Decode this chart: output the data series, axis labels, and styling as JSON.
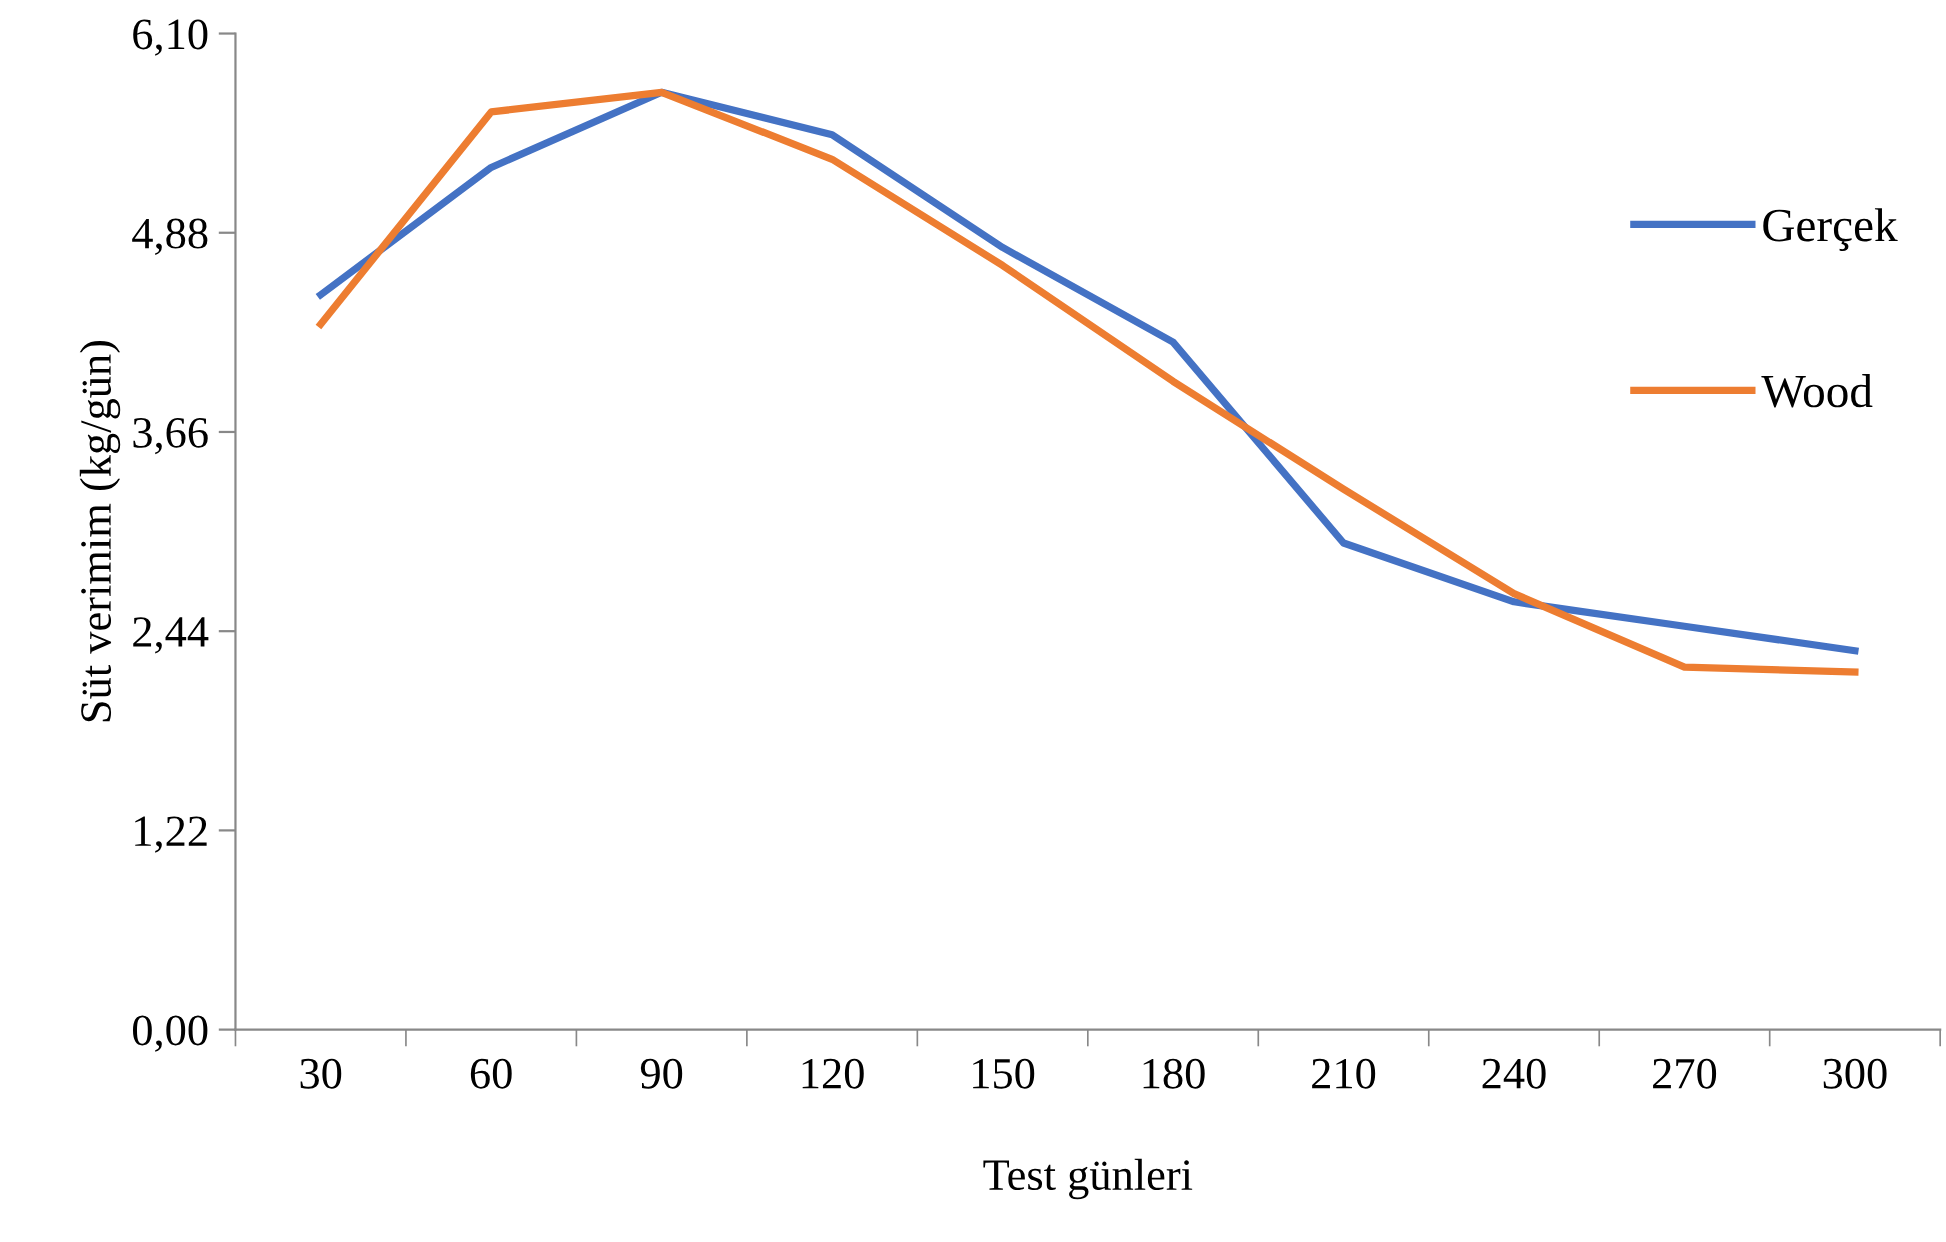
{
  "chart_data": {
    "type": "line",
    "xlabel": "Test günleri",
    "ylabel": "Süt verimim (kg/gün)",
    "categories": [
      "30",
      "60",
      "90",
      "120",
      "150",
      "180",
      "210",
      "240",
      "270",
      "300"
    ],
    "series": [
      {
        "name": "Gerçek",
        "color": "#4472c4",
        "values": [
          4.5,
          5.28,
          5.74,
          5.48,
          4.79,
          4.21,
          2.98,
          2.62,
          2.47,
          2.32
        ]
      },
      {
        "name": "Wood",
        "color": "#ed7d31",
        "values": [
          4.32,
          5.62,
          5.74,
          5.33,
          4.68,
          3.97,
          3.31,
          2.67,
          2.22,
          2.19
        ]
      }
    ],
    "ylim": [
      0,
      6.1
    ],
    "yticks": [
      {
        "value": 0,
        "label": "0,00"
      },
      {
        "value": 1.22,
        "label": "1,22"
      },
      {
        "value": 2.44,
        "label": "2,44"
      },
      {
        "value": 3.66,
        "label": "3,66"
      },
      {
        "value": 4.88,
        "label": "4,88"
      },
      {
        "value": 6.1,
        "label": "6,10"
      }
    ],
    "grid": false,
    "legend": "right",
    "marker": "none",
    "line_style": "solid"
  }
}
